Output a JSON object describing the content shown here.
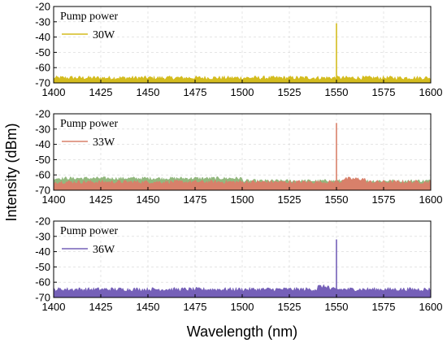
{
  "chart_data": {
    "type": "line",
    "x_axis_label": "Wavelength (nm)",
    "y_axis_label": "Intensity (dBm)",
    "xlim": [
      1400,
      1600
    ],
    "ylim": [
      -70,
      -20
    ],
    "x_ticks": [
      "1400",
      "1425",
      "1450",
      "1475",
      "1500",
      "1525",
      "1550",
      "1575",
      "1600"
    ],
    "y_ticks": [
      "-20",
      "-30",
      "-40",
      "-50",
      "-60",
      "-70"
    ],
    "grid": true,
    "legend_title": "Pump power",
    "legend_position": "top-left",
    "panels": [
      {
        "series": [
          {
            "name": "30W",
            "color": "#d4bc1e"
          }
        ],
        "noise_floor": -67,
        "peaks": [
          {
            "x": 1550,
            "y": -31
          }
        ]
      },
      {
        "series": [
          {
            "name": "33W",
            "color": "#d8806a",
            "secondary_color": "#86b070"
          }
        ],
        "noise_floor": -65,
        "peaks": [
          {
            "x": 1550,
            "y": -26
          }
        ]
      },
      {
        "series": [
          {
            "name": "36W",
            "color": "#7560b8"
          }
        ],
        "noise_floor": -65,
        "peaks": [
          {
            "x": 1550,
            "y": -32
          }
        ]
      }
    ]
  }
}
